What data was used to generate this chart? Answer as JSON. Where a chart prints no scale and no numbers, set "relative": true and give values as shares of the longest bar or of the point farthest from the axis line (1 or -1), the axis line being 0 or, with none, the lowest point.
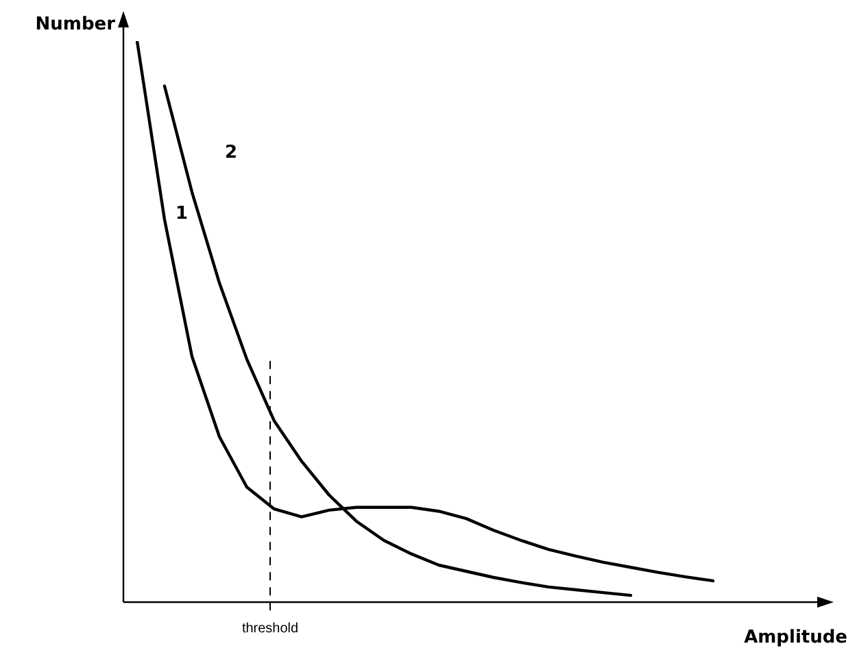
{
  "chart_data": {
    "type": "line",
    "relative": true,
    "xlabel": "Amplitude",
    "ylabel": "Number",
    "grid": false,
    "marker": "none",
    "categories": [
      null,
      null,
      null,
      null,
      null,
      null,
      null,
      null,
      null,
      null,
      null,
      null,
      null,
      null,
      null,
      null,
      null,
      null,
      null,
      null,
      null,
      null,
      null,
      null,
      null,
      null
    ],
    "series": [
      {
        "name": "1",
        "color": "#000000",
        "values": [
          1.0,
          0.682,
          0.438,
          0.295,
          0.205,
          0.166,
          0.152,
          0.164,
          0.169,
          0.169,
          0.169,
          0.162,
          0.149,
          0.128,
          0.11,
          0.094,
          0.082,
          0.071,
          0.062,
          0.053,
          0.045,
          0.038,
          null,
          null,
          null,
          null
        ]
      },
      {
        "name": "2",
        "color": "#000000",
        "values": [
          null,
          0.92,
          0.731,
          0.569,
          0.433,
          0.323,
          0.251,
          0.191,
          0.144,
          0.11,
          0.086,
          0.066,
          0.055,
          0.044,
          0.035,
          0.027,
          0.022,
          0.017,
          0.012,
          null,
          null,
          null,
          null,
          null,
          null,
          null
        ]
      }
    ],
    "annotations": [
      "threshold"
    ]
  }
}
